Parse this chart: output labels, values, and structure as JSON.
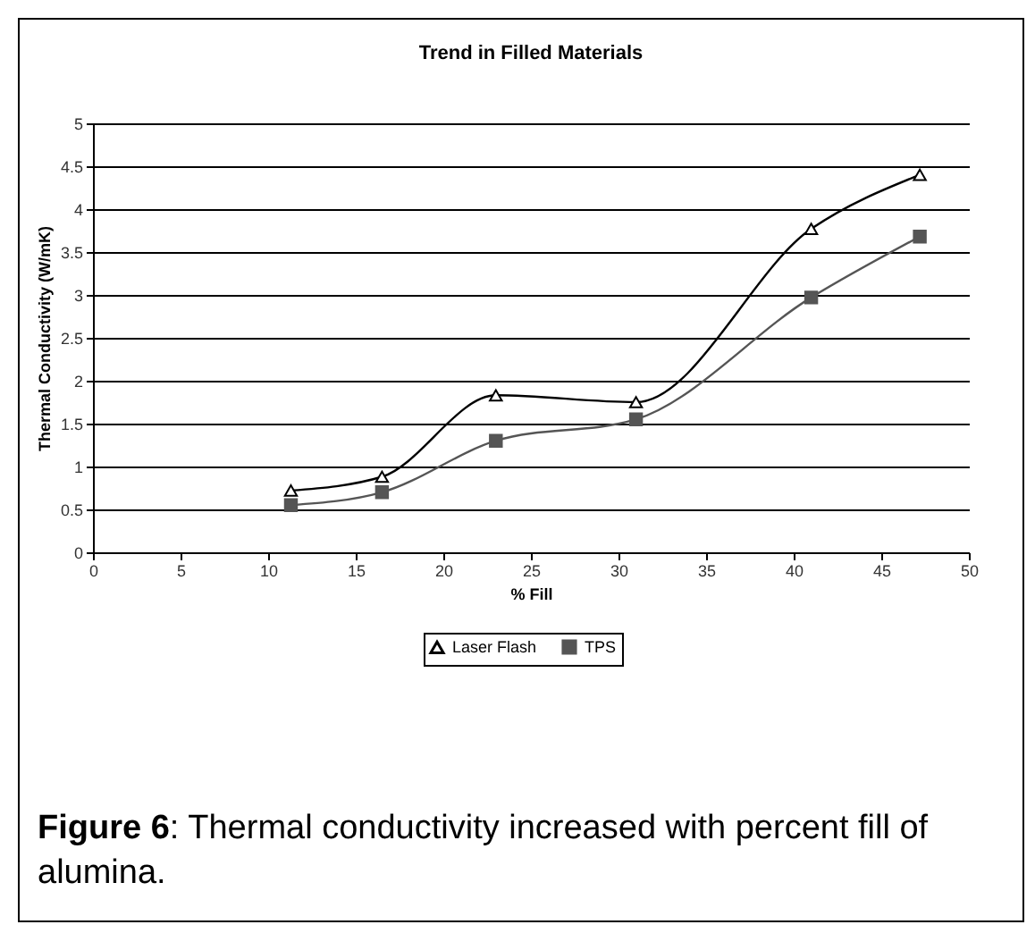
{
  "chart_data": {
    "type": "line",
    "title": "Trend in Filled Materials",
    "xlabel": "% Fill",
    "ylabel": "Thermal Conductivity (W/mK)",
    "x": [
      11.3,
      16.5,
      23,
      31,
      41,
      47.2
    ],
    "series": [
      {
        "name": "Laser Flash",
        "color": "#000000",
        "marker": "triangle",
        "values": [
          0.72,
          0.88,
          1.83,
          1.75,
          3.77,
          4.4
        ]
      },
      {
        "name": "TPS",
        "color": "#555555",
        "marker": "square",
        "values": [
          0.55,
          0.7,
          1.3,
          1.55,
          2.97,
          3.68
        ]
      }
    ],
    "xlim": [
      0,
      50
    ],
    "xticks": [
      0,
      5,
      10,
      15,
      20,
      25,
      30,
      35,
      40,
      45,
      50
    ],
    "ylim": [
      0,
      5
    ],
    "yticks": [
      0,
      0.5,
      1,
      1.5,
      2,
      2.5,
      3,
      3.5,
      4,
      4.5,
      5
    ],
    "grid": "y",
    "legend": "bottom",
    "annotations": [
      "Figure 6: Thermal conductivity increased with percent fill of alumina."
    ]
  }
}
